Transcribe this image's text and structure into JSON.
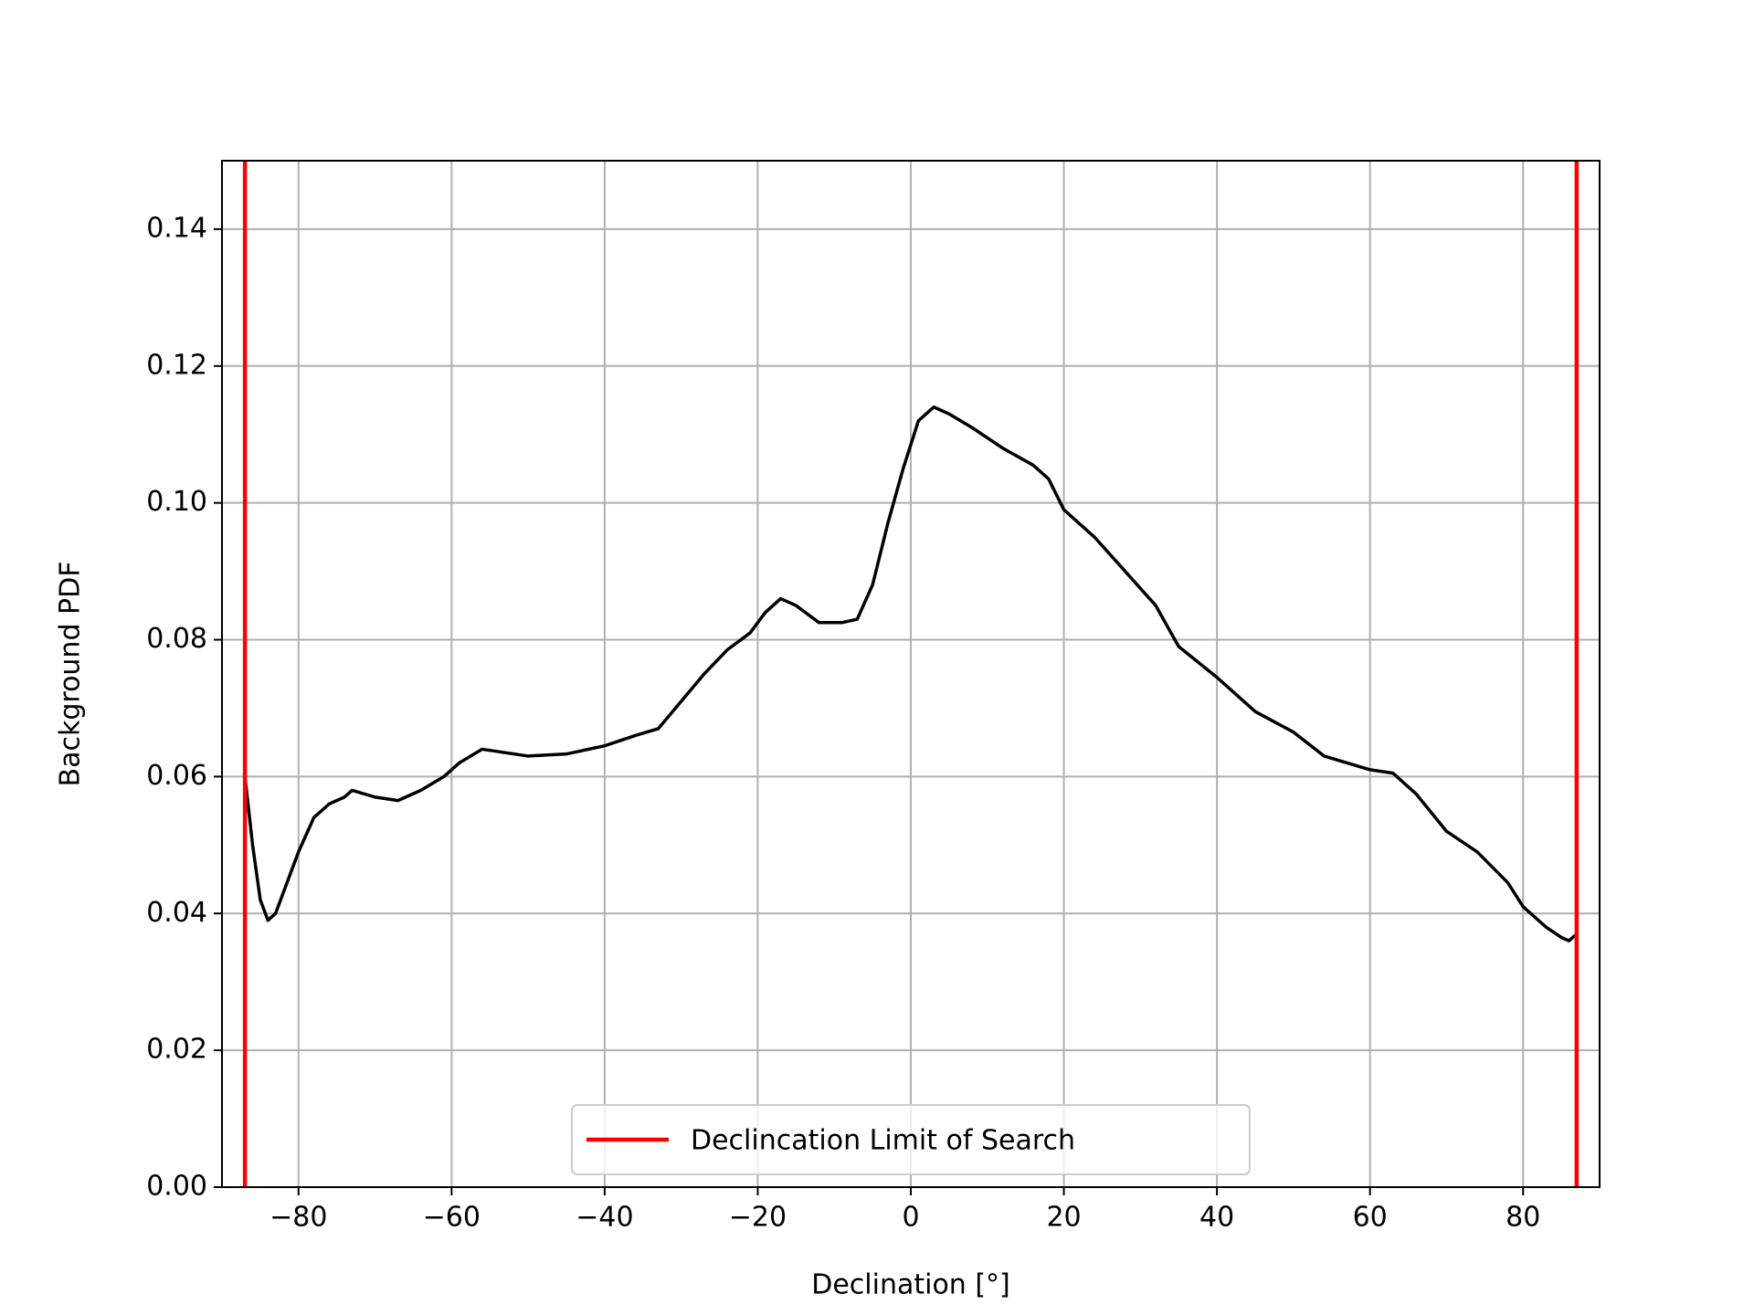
{
  "chart_data": {
    "type": "line",
    "xlabel": "Declination [°]",
    "ylabel": "Background PDF",
    "x": [
      -87,
      -86,
      -85,
      -84,
      -83,
      -82,
      -80,
      -78,
      -76,
      -74,
      -73,
      -70,
      -67,
      -64,
      -61,
      -59,
      -56,
      -53,
      -50,
      -45,
      -40,
      -36,
      -33,
      -30,
      -27,
      -24,
      -21,
      -19,
      -17,
      -15,
      -12,
      -9,
      -7,
      -5,
      -3,
      -1,
      1,
      3,
      5,
      8,
      12,
      16,
      18,
      20,
      24,
      28,
      32,
      35,
      40,
      45,
      50,
      54,
      60,
      63,
      66,
      70,
      74,
      78,
      80,
      83,
      85,
      86,
      87
    ],
    "series": [
      {
        "color": "#000000",
        "values": [
          0.06,
          0.05,
          0.042,
          0.039,
          0.04,
          0.043,
          0.049,
          0.054,
          0.056,
          0.057,
          0.058,
          0.057,
          0.0565,
          0.058,
          0.06,
          0.062,
          0.064,
          0.0635,
          0.063,
          0.0633,
          0.0645,
          0.066,
          0.067,
          0.071,
          0.075,
          0.0785,
          0.081,
          0.084,
          0.086,
          0.085,
          0.0825,
          0.0825,
          0.083,
          0.088,
          0.097,
          0.105,
          0.112,
          0.114,
          0.113,
          0.111,
          0.108,
          0.1055,
          0.1035,
          0.099,
          0.095,
          0.09,
          0.085,
          0.079,
          0.0745,
          0.0695,
          0.0665,
          0.063,
          0.061,
          0.0605,
          0.0575,
          0.052,
          0.049,
          0.0445,
          0.041,
          0.038,
          0.0365,
          0.036,
          0.037
        ]
      }
    ],
    "vlines": {
      "name": "Declincation Limit of Search",
      "color": "#ff0000",
      "x": [
        -87,
        87
      ]
    },
    "xlim": [
      -90,
      90
    ],
    "ylim": [
      0,
      0.15
    ],
    "xticks": [
      {
        "value": -80,
        "label": "−80"
      },
      {
        "value": -60,
        "label": "−60"
      },
      {
        "value": -40,
        "label": "−40"
      },
      {
        "value": -20,
        "label": "−20"
      },
      0,
      20,
      40,
      60,
      80
    ],
    "yticks": [
      {
        "value": 0,
        "label": "0.00"
      },
      {
        "value": 0.02,
        "label": "0.02"
      },
      {
        "value": 0.04,
        "label": "0.04"
      },
      {
        "value": 0.06,
        "label": "0.06"
      },
      {
        "value": 0.08,
        "label": "0.08"
      },
      {
        "value": 0.1,
        "label": "0.10"
      },
      {
        "value": 0.12,
        "label": "0.12"
      },
      {
        "value": 0.14,
        "label": "0.14"
      }
    ],
    "grid": true,
    "legend": "lower center"
  }
}
